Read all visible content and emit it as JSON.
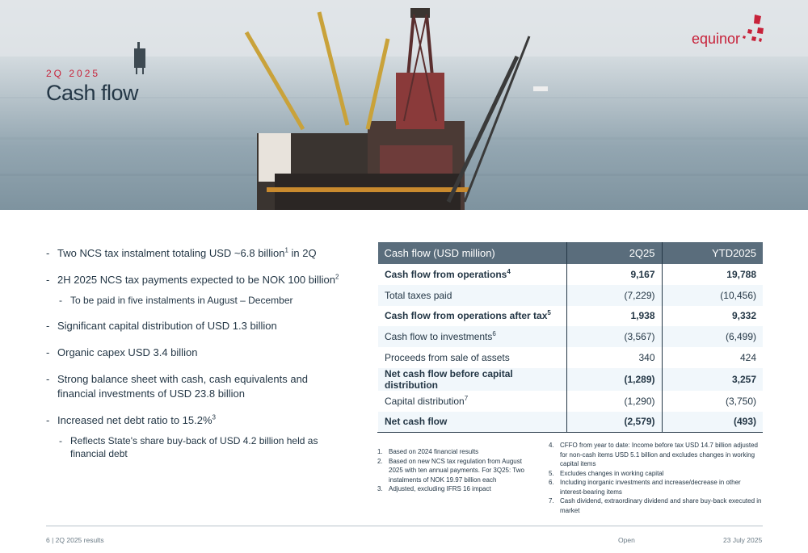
{
  "header": {
    "eyebrow": "2Q 2025",
    "title": "Cash flow",
    "logo_text": "equinor"
  },
  "bullets": [
    {
      "text": "Two NCS tax instalment totaling USD ~6.8 billion",
      "sup": "1",
      "after": " in 2Q"
    },
    {
      "text": "2H 2025 NCS tax payments expected to be NOK 100 billion",
      "sup": "2",
      "after": ""
    },
    {
      "sub": "To be paid in five instalments in August – December"
    },
    {
      "text": "Significant capital distribution of USD 1.3 billion",
      "sup": "",
      "after": ""
    },
    {
      "text": "Organic capex USD 3.4 billion",
      "sup": "",
      "after": ""
    },
    {
      "text": "Strong balance sheet with cash, cash equivalents and financial investments of USD 23.8 billion",
      "sup": "",
      "after": ""
    },
    {
      "text": "Increased net debt ratio to 15.2%",
      "sup": "3",
      "after": ""
    },
    {
      "sub": "Reflects State's share buy-back of USD 4.2 billion held as financial debt"
    }
  ],
  "table": {
    "headers": [
      "Cash flow (USD million)",
      "2Q25",
      "YTD2025"
    ],
    "rows": [
      {
        "label": "Cash flow from operations",
        "sup": "4",
        "q": "9,167",
        "ytd": "19,788",
        "bold": true,
        "alt": false
      },
      {
        "label": "Total taxes paid",
        "sup": "",
        "q": "(7,229)",
        "ytd": "(10,456)",
        "bold": false,
        "alt": true
      },
      {
        "label": "Cash flow from operations after tax",
        "sup": "5",
        "q": "1,938",
        "ytd": "9,332",
        "bold": true,
        "alt": false
      },
      {
        "label": "Cash flow to investments",
        "sup": "6",
        "q": "(3,567)",
        "ytd": "(6,499)",
        "bold": false,
        "alt": true
      },
      {
        "label": "Proceeds from sale of assets",
        "sup": "",
        "q": "340",
        "ytd": "424",
        "bold": false,
        "alt": false
      },
      {
        "label": "Net cash flow before capital distribution",
        "sup": "",
        "q": "(1,289)",
        "ytd": "3,257",
        "bold": true,
        "alt": true
      },
      {
        "label": "Capital distribution",
        "sup": "7",
        "q": "(1,290)",
        "ytd": "(3,750)",
        "bold": false,
        "alt": false
      },
      {
        "label": "Net cash flow",
        "sup": "",
        "q": "(2,579)",
        "ytd": "(493)",
        "bold": true,
        "alt": true
      }
    ]
  },
  "footnotes_left": [
    {
      "n": "1.",
      "text": "Based on 2024 financial results"
    },
    {
      "n": "2.",
      "text": "Based on new NCS tax regulation from August 2025 with ten annual payments. For 3Q25: Two instalments of NOK 19.97 billion each"
    },
    {
      "n": "3.",
      "text": "Adjusted, excluding IFRS 16 impact"
    }
  ],
  "footnotes_right": [
    {
      "n": "4.",
      "text": "CFFO from year to date: Income before tax USD 14.7 billion adjusted for non-cash items USD 5.1 billion and excludes changes in working capital items"
    },
    {
      "n": "5.",
      "text": "Excludes changes in working capital"
    },
    {
      "n": "6.",
      "text": "Including inorganic investments and increase/decrease in other interest-bearing items"
    },
    {
      "n": "7.",
      "text": "Cash dividend, extraordinary dividend and share buy-back executed in market"
    }
  ],
  "footer": {
    "page": "6 |  2Q 2025 results",
    "classification": "Open",
    "date": "23 July 2025"
  },
  "colors": {
    "accent": "#c7223a",
    "header_row": "#5a6d7c",
    "alt_row": "#f1f7fb",
    "text": "#243746"
  }
}
